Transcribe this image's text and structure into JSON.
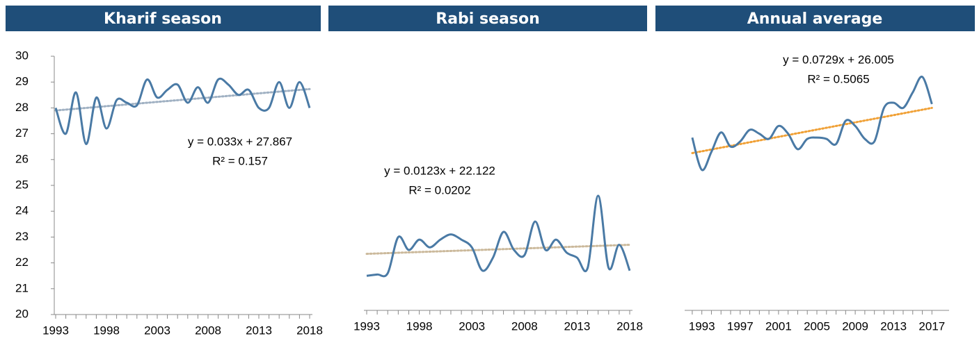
{
  "chart_data": [
    {
      "type": "line",
      "title": "Kharif season",
      "x": [
        1993,
        1994,
        1995,
        1996,
        1997,
        1998,
        1999,
        2000,
        2001,
        2002,
        2003,
        2004,
        2005,
        2006,
        2007,
        2008,
        2009,
        2010,
        2011,
        2012,
        2013,
        2014,
        2015,
        2016,
        2017,
        2018
      ],
      "values": [
        28.0,
        27.0,
        28.6,
        26.6,
        28.4,
        27.2,
        28.3,
        28.2,
        28.1,
        29.1,
        28.4,
        28.7,
        28.9,
        28.2,
        28.8,
        28.2,
        29.1,
        28.9,
        28.5,
        28.7,
        28.0,
        28.0,
        29.0,
        28.0,
        29.0,
        28.0
      ],
      "trend_values": [
        27.9,
        28.73
      ],
      "equation": "y = 0.033x + 27.867",
      "r_squared": "R² = 0.157",
      "color": "#4a7aa5",
      "trend_color": "#9fb0c2",
      "xlim": [
        1993,
        2018
      ],
      "xticks": [
        1993,
        1998,
        2003,
        2008,
        2013,
        2018
      ],
      "ylim": [
        20,
        30
      ],
      "yticks": [
        20,
        21,
        22,
        23,
        24,
        25,
        26,
        27,
        28,
        29,
        30
      ]
    },
    {
      "type": "line",
      "title": "Rabi season",
      "x": [
        1993,
        1994,
        1995,
        1996,
        1997,
        1998,
        1999,
        2000,
        2001,
        2002,
        2003,
        2004,
        2005,
        2006,
        2007,
        2008,
        2009,
        2010,
        2011,
        2012,
        2013,
        2014,
        2015,
        2016,
        2017,
        2018
      ],
      "values": [
        21.5,
        21.55,
        21.6,
        23.0,
        22.5,
        22.9,
        22.6,
        22.9,
        23.1,
        22.9,
        22.6,
        21.7,
        22.2,
        23.2,
        22.5,
        22.3,
        23.6,
        22.5,
        22.9,
        22.4,
        22.2,
        21.8,
        24.6,
        21.8,
        22.7,
        21.7
      ],
      "trend_values": [
        22.35,
        22.7
      ],
      "equation": "y = 0.0123x + 22.122",
      "r_squared": "R² = 0.0202",
      "color": "#4a7aa5",
      "trend_color": "#cbb99b",
      "xlim": [
        1993,
        2018
      ],
      "xticks": [
        1993,
        1998,
        2003,
        2008,
        2013,
        2018
      ],
      "ylim": [
        20,
        30
      ]
    },
    {
      "type": "line",
      "title": "Annual average",
      "x": [
        1992,
        1993,
        1994,
        1995,
        1996,
        1997,
        1998,
        1999,
        2000,
        2001,
        2002,
        2003,
        2004,
        2005,
        2006,
        2007,
        2008,
        2009,
        2010,
        2011,
        2012,
        2013,
        2014,
        2015,
        2016,
        2017
      ],
      "values": [
        26.85,
        25.6,
        26.3,
        27.05,
        26.5,
        26.7,
        27.15,
        27.0,
        26.8,
        27.3,
        27.0,
        26.4,
        26.8,
        26.85,
        26.8,
        26.6,
        27.5,
        27.3,
        26.8,
        26.7,
        28.0,
        28.2,
        28.0,
        28.6,
        29.2,
        28.15
      ],
      "trend_values": [
        26.25,
        28.0
      ],
      "equation": "y = 0.0729x + 26.005",
      "r_squared": "R² = 0.5065",
      "color": "#4a7aa5",
      "trend_color": "#f0a035",
      "xlim": [
        1991.5,
        2018.5
      ],
      "xticks": [
        1993,
        1997,
        2001,
        2005,
        2009,
        2013,
        2017
      ],
      "ylim": [
        20,
        30
      ]
    }
  ]
}
